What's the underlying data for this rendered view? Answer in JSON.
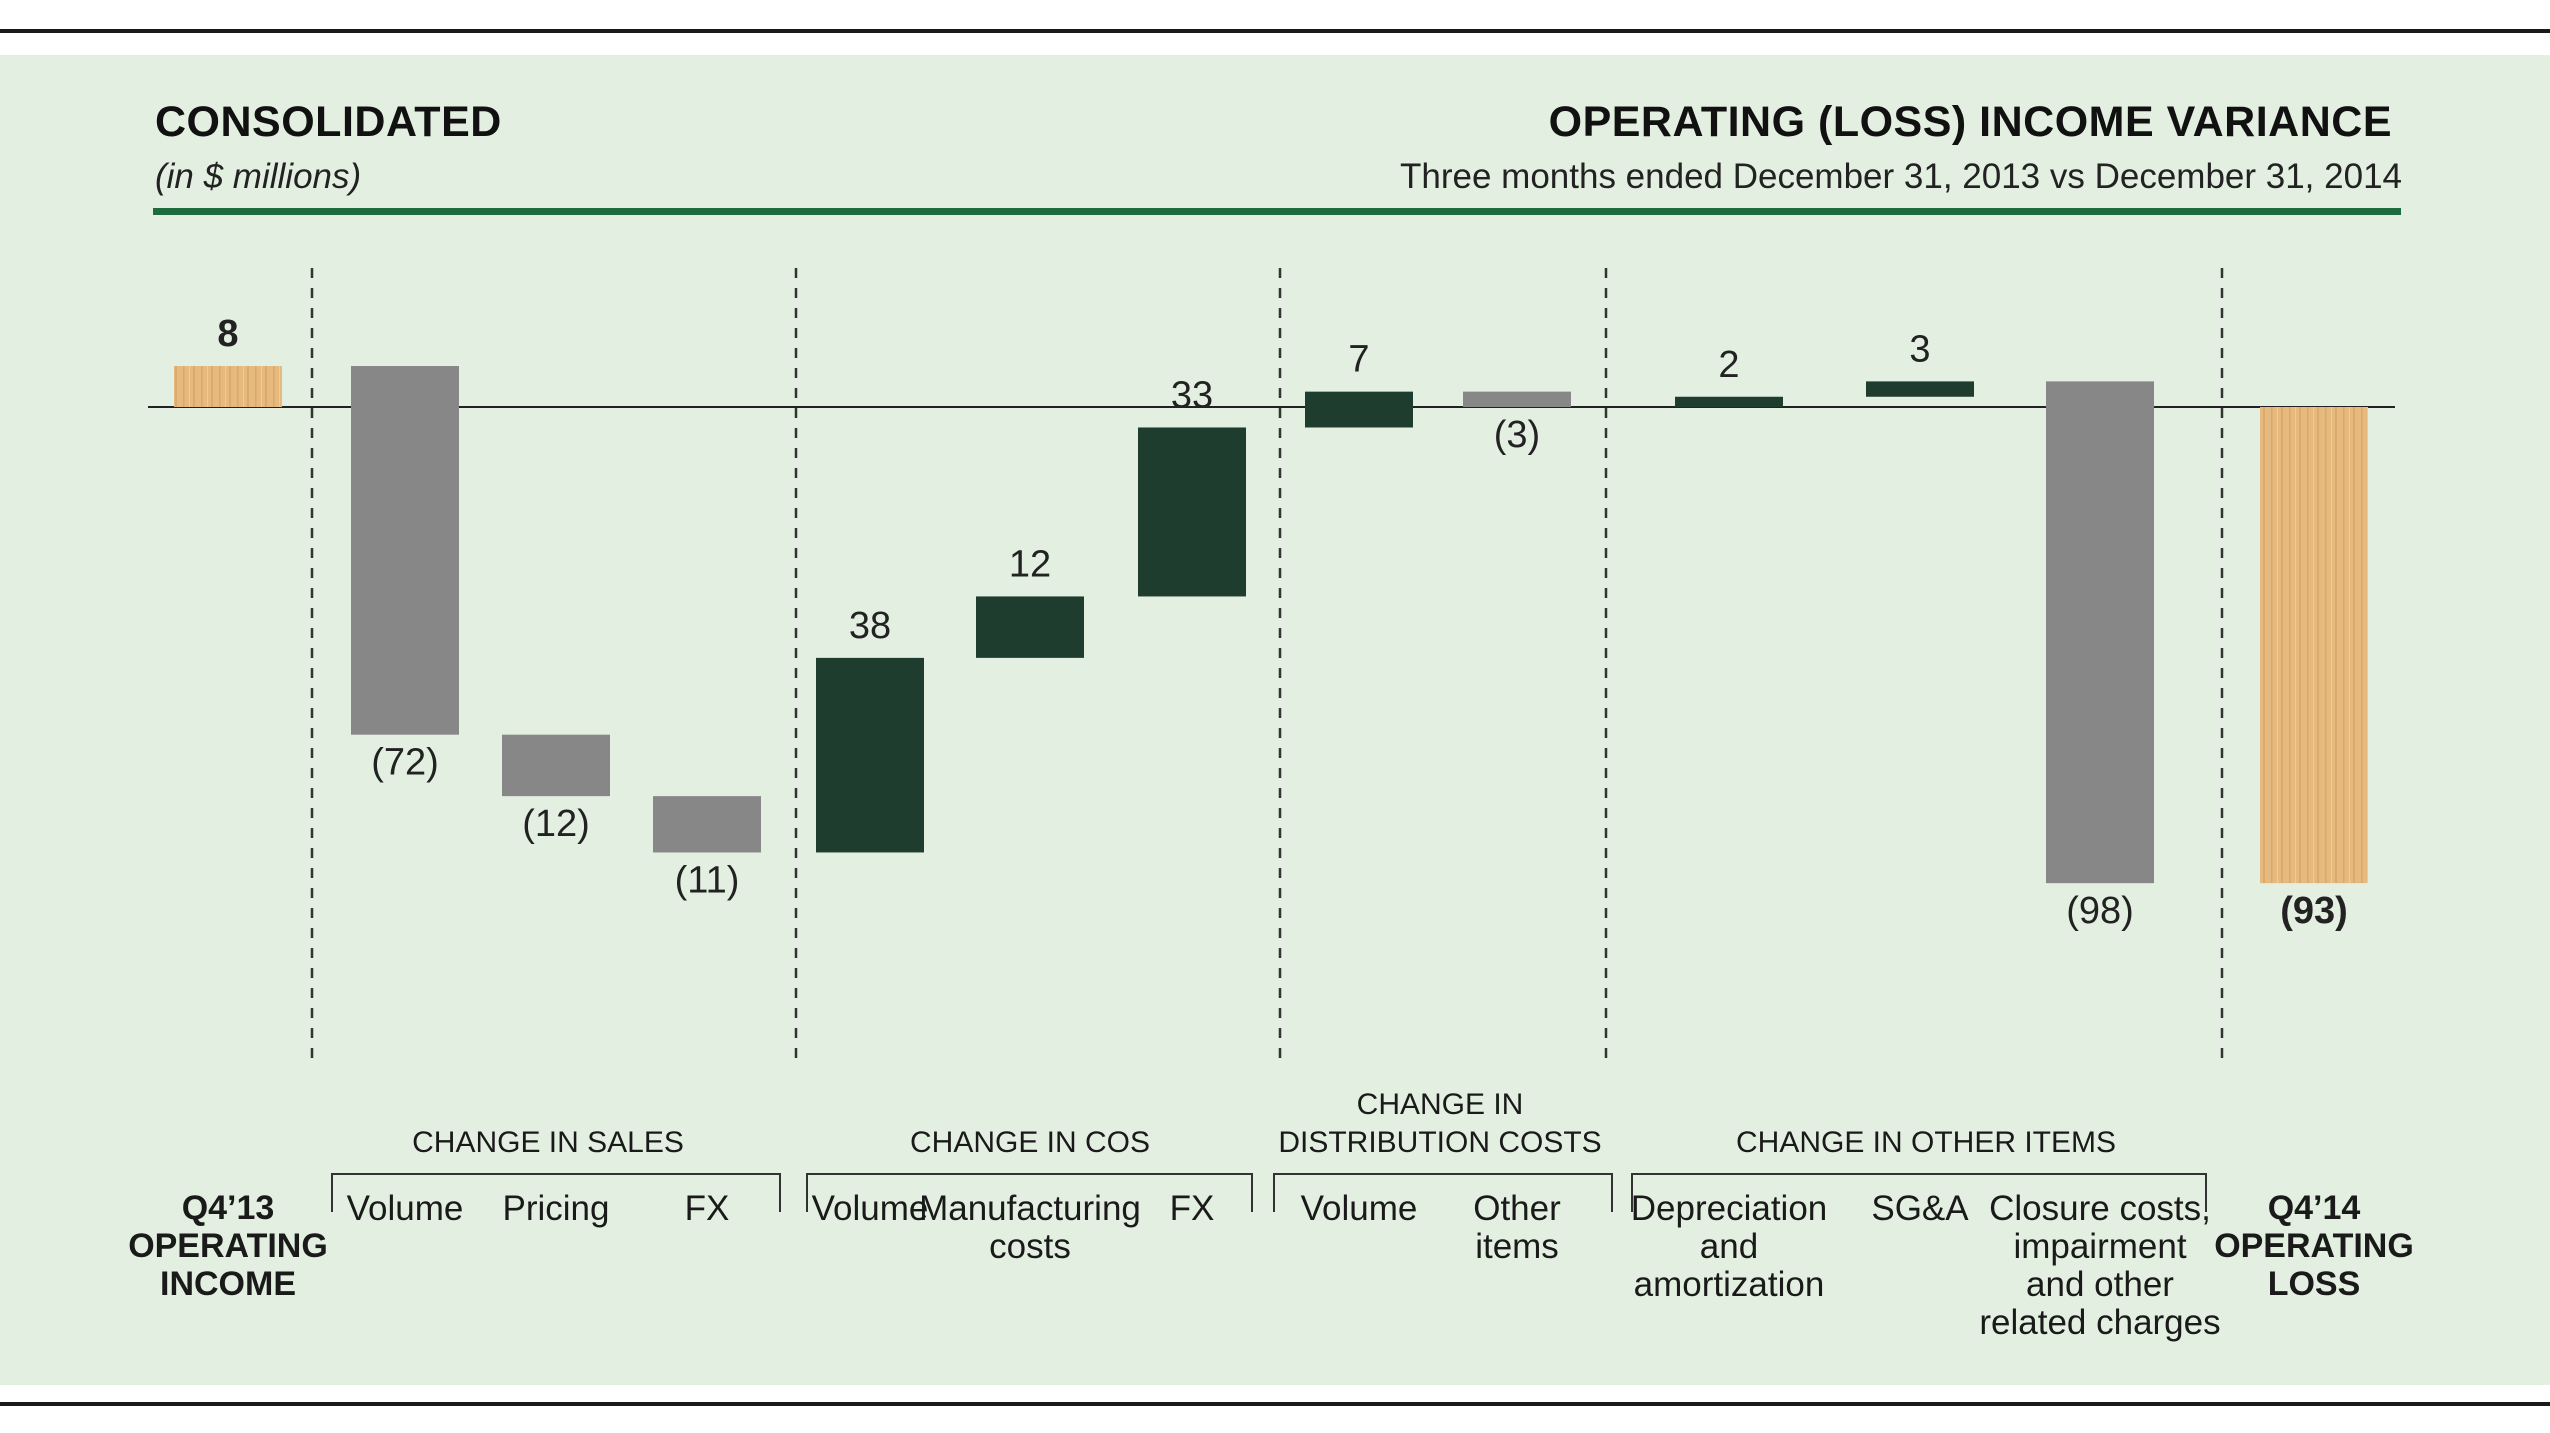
{
  "header": {
    "title_left": "CONSOLIDATED",
    "subtitle_left": "(in $ millions)",
    "title_right": "OPERATING (LOSS) INCOME VARIANCE",
    "subtitle_right": "Three months ended December 31, 2013 vs December 31, 2014"
  },
  "colors": {
    "negative": "#878787",
    "positive": "#1e3d2f",
    "total": "#e6b97e",
    "accent_rule": "#1e6b3e",
    "background": "#e3efe1"
  },
  "chart_data": {
    "type": "waterfall",
    "start": {
      "label": [
        "Q4’13",
        "OPERATING",
        "INCOME"
      ],
      "value": 8,
      "value_label": "8"
    },
    "end": {
      "label": [
        "Q4’14",
        "OPERATING",
        "LOSS"
      ],
      "value": -93,
      "value_label": "(93)"
    },
    "groups": [
      {
        "name": "CHANGE IN SALES",
        "lines": [
          "CHANGE IN SALES"
        ],
        "items": [
          {
            "label": [
              "Volume"
            ],
            "value": -72,
            "value_label": "(72)"
          },
          {
            "label": [
              "Pricing"
            ],
            "value": -12,
            "value_label": "(12)"
          },
          {
            "label": [
              "FX"
            ],
            "value": -11,
            "value_label": "(11)"
          }
        ]
      },
      {
        "name": "CHANGE IN COS",
        "lines": [
          "CHANGE IN COS"
        ],
        "items": [
          {
            "label": [
              "Volume"
            ],
            "value": 38,
            "value_label": "38"
          },
          {
            "label": [
              "Manufacturing",
              "costs"
            ],
            "value": 12,
            "value_label": "12"
          },
          {
            "label": [
              "FX"
            ],
            "value": 33,
            "value_label": "33"
          }
        ]
      },
      {
        "name": "CHANGE IN DISTRIBUTION COSTS",
        "lines": [
          "CHANGE IN",
          "DISTRIBUTION COSTS"
        ],
        "items": [
          {
            "label": [
              "Volume"
            ],
            "value": 7,
            "value_label": "7"
          },
          {
            "label": [
              "Other",
              "items"
            ],
            "value": -3,
            "value_label": "(3)"
          }
        ]
      },
      {
        "name": "CHANGE IN OTHER ITEMS",
        "lines": [
          "CHANGE IN OTHER ITEMS"
        ],
        "items": [
          {
            "label": [
              "Depreciation",
              "and",
              "amortization"
            ],
            "value": 2,
            "value_label": "2"
          },
          {
            "label": [
              "SG&A"
            ],
            "value": 3,
            "value_label": "3"
          },
          {
            "label": [
              "Closure costs,",
              "impairment",
              "and other",
              "related charges"
            ],
            "value": -98,
            "value_label": "(98)"
          }
        ]
      }
    ]
  }
}
